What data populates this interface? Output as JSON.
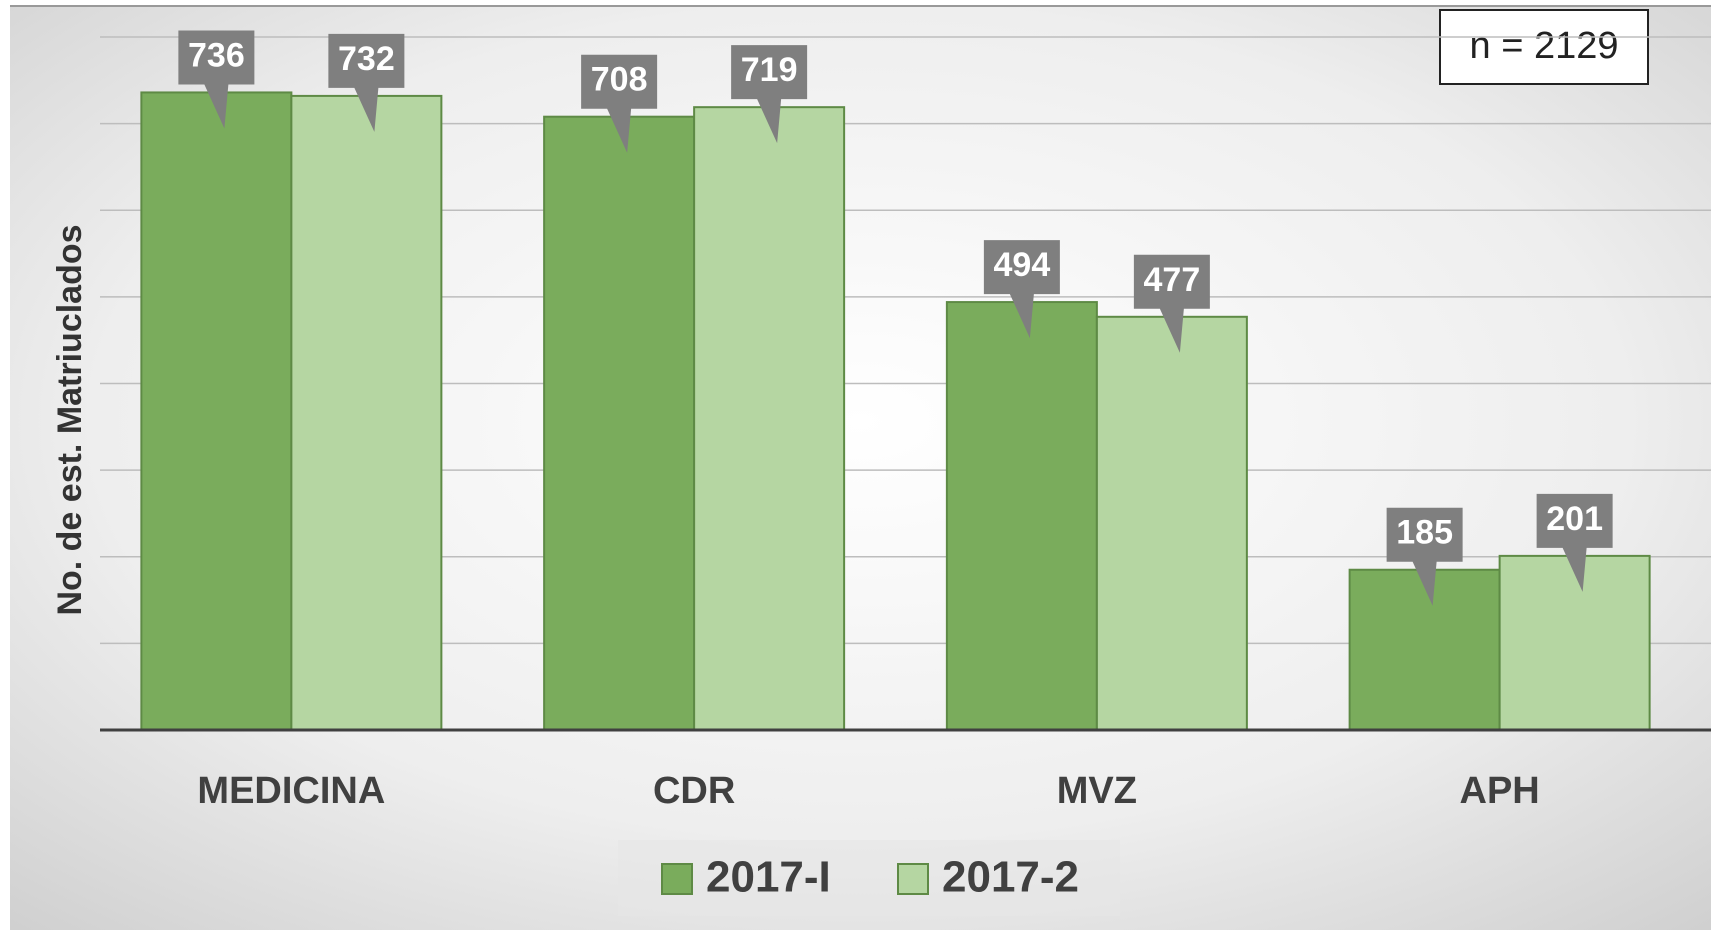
{
  "chart_data": {
    "type": "bar",
    "y_label": "No. de est. Matriuclados",
    "annotation": "n = 2129",
    "categories": [
      "MEDICINA",
      "CDR",
      "MVZ",
      "APH"
    ],
    "series": [
      {
        "name": "2017-I",
        "color": "#7aac5c",
        "values": [
          736,
          708,
          494,
          185
        ]
      },
      {
        "name": "2017-2",
        "color": "#b5d6a2",
        "values": [
          732,
          719,
          477,
          201
        ]
      }
    ],
    "ylim": [
      0,
      800
    ],
    "yticks": [
      0,
      100,
      200,
      300,
      400,
      500,
      600,
      700,
      800
    ],
    "grid": true
  }
}
